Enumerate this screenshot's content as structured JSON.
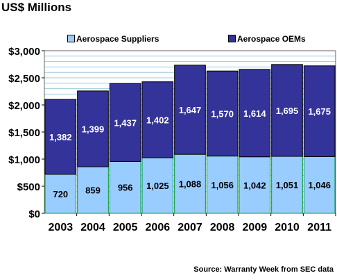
{
  "title": "US$ Millions",
  "source": "Source: Warranty Week from SEC data",
  "colors": {
    "suppliers": "#99ccff",
    "oems": "#333399",
    "grid": "#99ccdd",
    "bar_border": "#009933"
  },
  "chart_data": {
    "type": "bar",
    "stacked": true,
    "categories": [
      "2003",
      "2004",
      "2005",
      "2006",
      "2007",
      "2008",
      "2009",
      "2010",
      "2011"
    ],
    "series": [
      {
        "name": "Aerospace Suppliers",
        "values": [
          720,
          859,
          956,
          1025,
          1088,
          1056,
          1042,
          1051,
          1046
        ]
      },
      {
        "name": "Aerospace OEMs",
        "values": [
          1382,
          1399,
          1437,
          1402,
          1647,
          1570,
          1614,
          1695,
          1675
        ]
      }
    ],
    "data_labels": {
      "Aerospace Suppliers": [
        "720",
        "859",
        "956",
        "1,025",
        "1,088",
        "1,056",
        "1,042",
        "1,051",
        "1,046"
      ],
      "Aerospace OEMs": [
        "1,382",
        "1,399",
        "1,437",
        "1,402",
        "1,647",
        "1,570",
        "1,614",
        "1,695",
        "1,675"
      ]
    },
    "yticks": [
      "$0",
      "$500",
      "$1,000",
      "$1,500",
      "$2,000",
      "$2,500",
      "$3,000"
    ],
    "ylim": [
      0,
      3000
    ],
    "grid": true,
    "legend": "top"
  }
}
